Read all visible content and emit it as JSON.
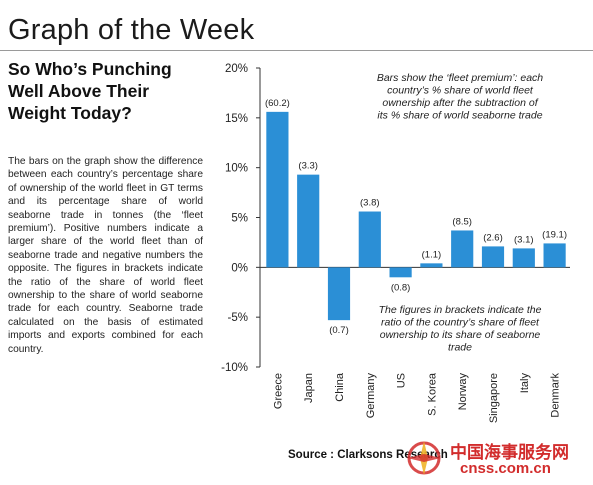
{
  "header": {
    "title": "Graph of the Week",
    "subtitle": "So Who’s Punching Well Above Their Weight Today?"
  },
  "description": "The bars on the graph show the difference between each country’s percentage share of ownership of the world fleet in GT terms and its percentage share of world seaborne trade in tonnes (the ‘fleet premium’). Positive numbers indicate a larger share of the world fleet than of seaborne trade and negative numbers the opposite. The figures in brackets indicate the ratio of the share of world fleet ownership to the share of world seaborne trade for each country. Seaborne trade calculated on the basis of estimated imports and exports combined for each country.",
  "source": "Source : Clarksons Research",
  "watermark": {
    "text_zh": "中国海事服务网",
    "text_en": "cnss.com.cn"
  },
  "colors": {
    "bar": "#2b8fd6",
    "watermark": "#d22c2c"
  },
  "chart_data": {
    "type": "bar",
    "categories": [
      "Greece",
      "Japan",
      "China",
      "Germany",
      "US",
      "S. Korea",
      "Norway",
      "Singapore",
      "Italy",
      "Denmark"
    ],
    "values": [
      15.6,
      9.3,
      -5.3,
      5.6,
      -1.0,
      0.4,
      3.7,
      2.1,
      1.9,
      2.4
    ],
    "bar_labels": [
      "(60.2)",
      "(3.3)",
      "(0.7)",
      "(3.8)",
      "(0.8)",
      "(1.1)",
      "(8.5)",
      "(2.6)",
      "(3.1)",
      "(19.1)"
    ],
    "yticks": [
      "20%",
      "15%",
      "10%",
      "5%",
      "0%",
      "-5%",
      "-10%"
    ],
    "ylim": [
      -10,
      20
    ],
    "annotations": [
      "Bars show the ‘fleet premium’: each country’s % share of world fleet ownership after the subtraction of its % share of world seaborne trade",
      "The figures in brackets indicate the ratio of the country’s share of fleet ownership to its share of seaborne trade"
    ],
    "grid": false,
    "legend": "none"
  }
}
